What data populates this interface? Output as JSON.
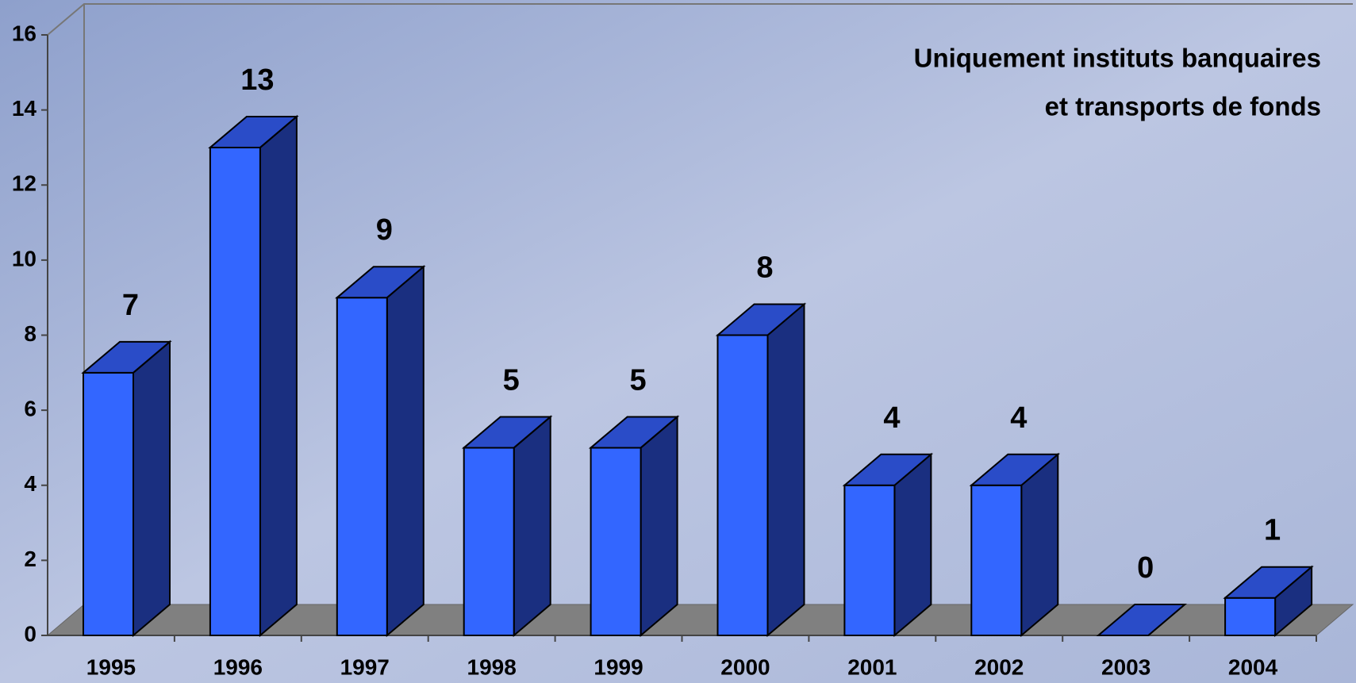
{
  "chart_data": {
    "type": "bar3d",
    "annotations": [
      "Uniquement instituts banquaires",
      "et transports de fonds"
    ],
    "categories": [
      "1995",
      "1996",
      "1997",
      "1998",
      "1999",
      "2000",
      "2001",
      "2002",
      "2003",
      "2004"
    ],
    "values": [
      7,
      13,
      9,
      5,
      5,
      8,
      4,
      4,
      0,
      1
    ],
    "color": "#3366ff",
    "side_color": "#1a2f80",
    "top_color": "#2a4cc8",
    "floor_color": "#808080",
    "ylim": [
      0,
      16
    ],
    "yticks": [
      0,
      2,
      4,
      6,
      8,
      10,
      12,
      14,
      16
    ],
    "grid": false
  }
}
